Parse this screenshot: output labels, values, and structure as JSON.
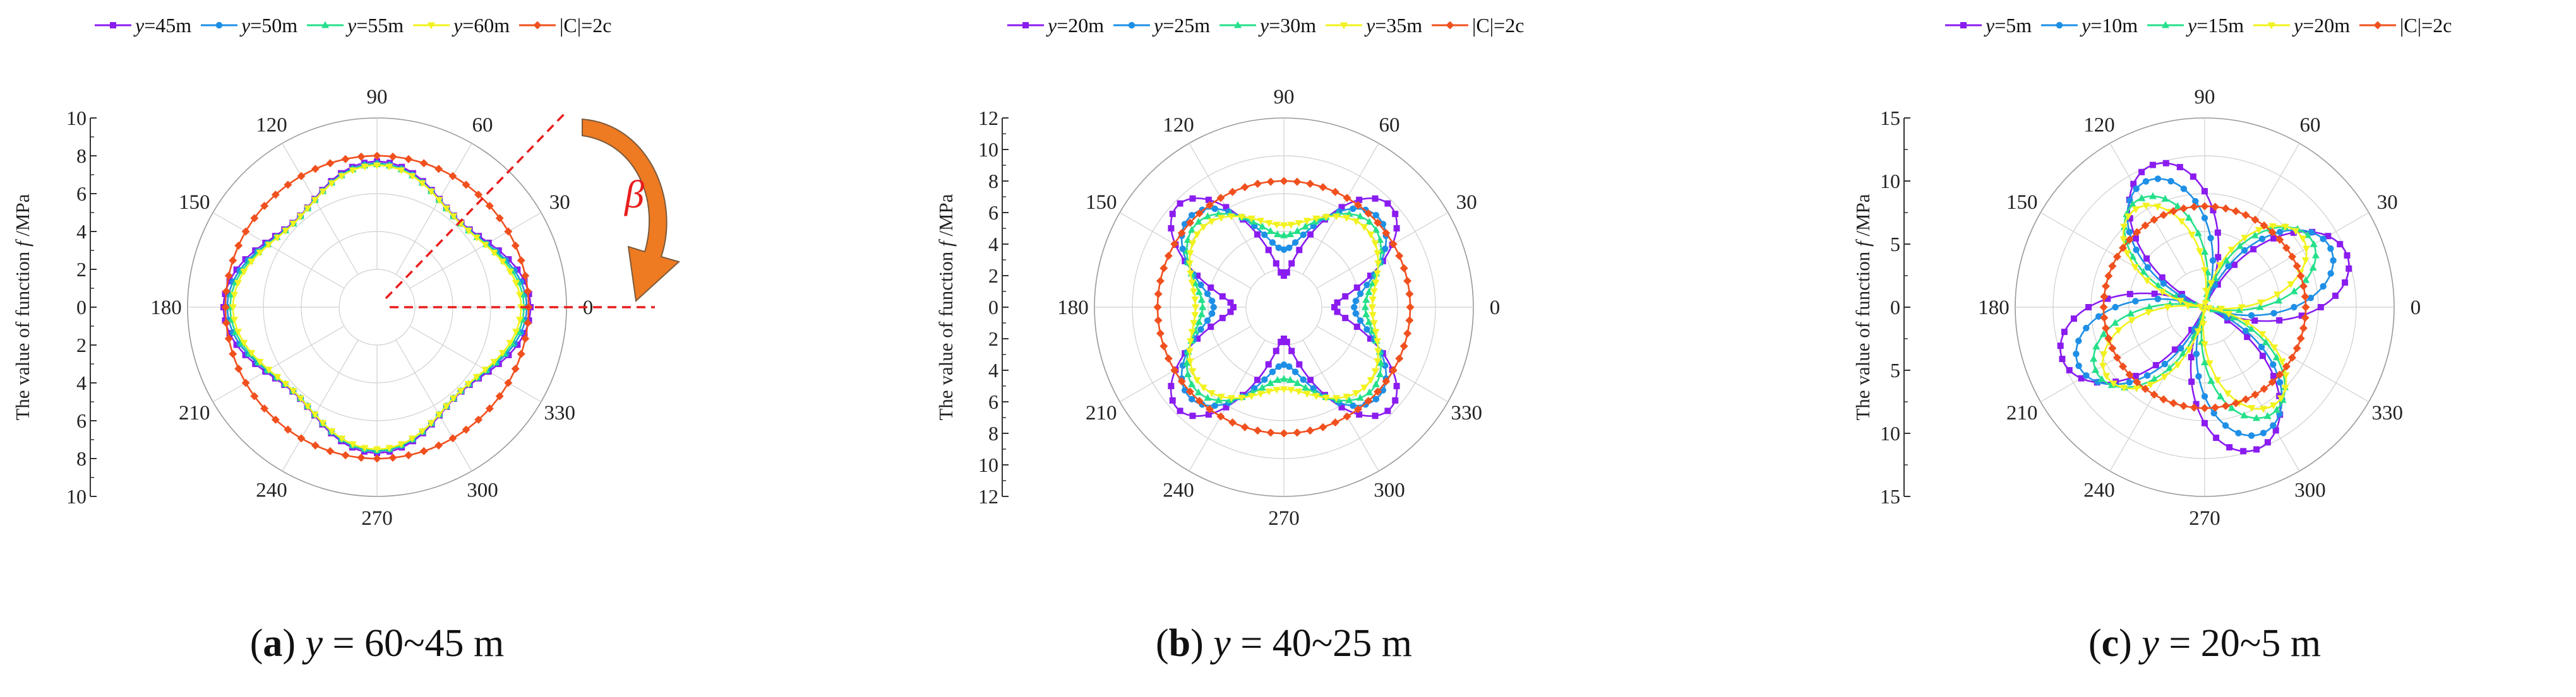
{
  "figure": {
    "panels": [
      {
        "id": "a",
        "caption_label": "a",
        "caption_text": " = 60~45 m",
        "caption_var": "y"
      },
      {
        "id": "b",
        "caption_label": "b",
        "caption_text": " = 40~25 m",
        "caption_var": "y"
      },
      {
        "id": "c",
        "caption_label": "c",
        "caption_text": " = 20~5 m",
        "caption_var": "y"
      }
    ],
    "annotation_beta": "β"
  },
  "colors": {
    "series": [
      "#8a1cf0",
      "#1e8fe6",
      "#25e08a",
      "#f2f21e",
      "#f0501e"
    ],
    "grid": "#d0d0d0",
    "axis": "#333333",
    "beta_text": "#e81e1e",
    "beta_line": "#e81e1e",
    "arrow": "#ee7a22",
    "arrow_edge": "#7a5a3c"
  },
  "chart_data": [
    {
      "type": "polar-line",
      "title": "",
      "ylabel": "The value of function f /MPa",
      "ylabel_prefix": "The value of function ",
      "ylabel_var": "f",
      "ylabel_suffix": " /MPa",
      "rmax": 10,
      "radial_ticks": [
        "10",
        "8",
        "6",
        "4",
        "2",
        "0",
        "2",
        "4",
        "6",
        "8",
        "10"
      ],
      "angle_ticks": [
        "0",
        "30",
        "60",
        "90",
        "120",
        "150",
        "180",
        "210",
        "240",
        "270",
        "300",
        "330"
      ],
      "legend": [
        {
          "italic": "y",
          "text": "=45m"
        },
        {
          "italic": "y",
          "text": "=50m"
        },
        {
          "italic": "y",
          "text": "=55m"
        },
        {
          "italic": "y",
          "text": "=60m"
        },
        {
          "italic": "",
          "text": "|C|=2c"
        }
      ],
      "curve_model": "r(θ) = A0 + A2·cos(2θ) + A4·cos(4θ)",
      "series": [
        {
          "name": "y=45m",
          "A0": 7.1,
          "A2": 0.2,
          "A4": 0.8
        },
        {
          "name": "y=50m",
          "A0": 7.0,
          "A2": 0.15,
          "A4": 0.75
        },
        {
          "name": "y=55m",
          "A0": 6.95,
          "A2": 0.1,
          "A4": 0.7
        },
        {
          "name": "y=60m",
          "A0": 6.9,
          "A2": 0.05,
          "A4": 0.65
        },
        {
          "name": "|C|=2c",
          "A0": 8.0,
          "A2": 0.0,
          "A4": 0.0
        }
      ],
      "has_beta_annotation": true
    },
    {
      "type": "polar-line",
      "title": "",
      "ylabel": "The value of function f /MPa",
      "ylabel_prefix": "The value of function ",
      "ylabel_var": "f",
      "ylabel_suffix": " /MPa",
      "rmax": 12,
      "radial_ticks": [
        "12",
        "10",
        "8",
        "6",
        "4",
        "2",
        "0",
        "2",
        "4",
        "6",
        "8",
        "10",
        "12"
      ],
      "angle_ticks": [
        "0",
        "30",
        "60",
        "90",
        "120",
        "150",
        "180",
        "210",
        "240",
        "270",
        "300",
        "330"
      ],
      "legend": [
        {
          "italic": "y",
          "text": "=20m"
        },
        {
          "italic": "y",
          "text": "=25m"
        },
        {
          "italic": "y",
          "text": "=30m"
        },
        {
          "italic": "y",
          "text": "=35m"
        },
        {
          "italic": "",
          "text": "|C|=2c"
        }
      ],
      "curve_model": "r(θ) = A0 + A2·cos(2θ) + A4·cos(4θ)",
      "series": [
        {
          "name": "y=20m",
          "A0": 5.95,
          "A2": 0.6,
          "A4": -3.35
        },
        {
          "name": "y=25m",
          "A0": 6.15,
          "A2": 0.4,
          "A4": -2.1
        },
        {
          "name": "y=30m",
          "A0": 6.25,
          "A2": 0.3,
          "A4": -1.4
        },
        {
          "name": "y=35m",
          "A0": 6.3,
          "A2": 0.2,
          "A4": -0.9
        },
        {
          "name": "|C|=2c",
          "A0": 8.0,
          "A2": 0.0,
          "A4": 0.0
        }
      ],
      "has_beta_annotation": false
    },
    {
      "type": "polar-line",
      "title": "",
      "ylabel": "The value of function f /MPa",
      "ylabel_prefix": "The value of function ",
      "ylabel_var": "f",
      "ylabel_suffix": " /MPa",
      "rmax": 15,
      "radial_ticks": [
        "15",
        "10",
        "5",
        "0",
        "5",
        "10",
        "15"
      ],
      "angle_ticks": [
        "0",
        "30",
        "60",
        "90",
        "120",
        "150",
        "180",
        "210",
        "240",
        "270",
        "300",
        "330"
      ],
      "legend": [
        {
          "italic": "y",
          "text": "=5m"
        },
        {
          "italic": "y",
          "text": "=10m"
        },
        {
          "italic": "y",
          "text": "=15m"
        },
        {
          "italic": "y",
          "text": "=20m"
        },
        {
          "italic": "",
          "text": "|C|=2c"
        }
      ],
      "curve_model": "r(θ) = |A·cos(2(θ − φ))| rosette",
      "series": [
        {
          "name": "y=5m",
          "A": 12.0,
          "phi": 20
        },
        {
          "name": "y=10m",
          "A": 11.0,
          "phi": 25
        },
        {
          "name": "y=15m",
          "A": 10.0,
          "phi": 32
        },
        {
          "name": "y=20m",
          "A": 9.5,
          "phi": 36
        },
        {
          "name": "|C|=2c",
          "A0": 8.0
        }
      ],
      "has_beta_annotation": false
    }
  ]
}
